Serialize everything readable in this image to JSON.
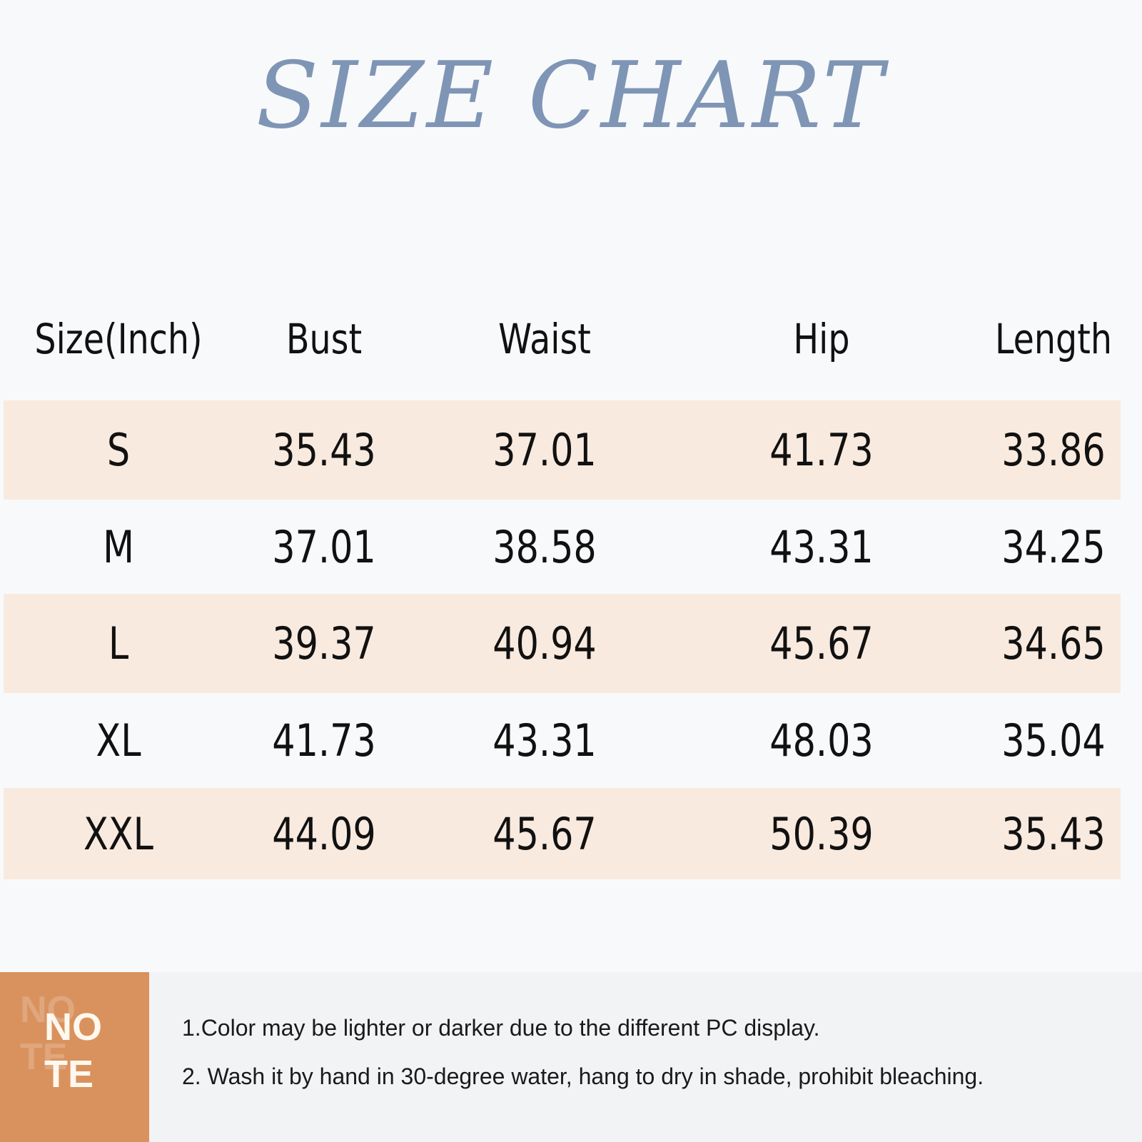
{
  "title": "SIZE CHART",
  "table": {
    "headers": [
      "Size(Inch)",
      "Bust",
      "Waist",
      "Hip",
      "Length"
    ],
    "rows": [
      [
        "S",
        "35.43",
        "37.01",
        "41.73",
        "33.86"
      ],
      [
        "M",
        "37.01",
        "38.58",
        "43.31",
        "34.25"
      ],
      [
        "L",
        "39.37",
        "40.94",
        "45.67",
        "34.65"
      ],
      [
        "XL",
        "41.73",
        "43.31",
        "48.03",
        "35.04"
      ],
      [
        "XXL",
        "44.09",
        "45.67",
        "50.39",
        "35.43"
      ]
    ]
  },
  "note": {
    "badge_line1": "NO",
    "badge_line2": "TE",
    "lines": [
      "1.Color may be lighter or darker due to the different PC display.",
      "2. Wash it by hand in 30-degree water, hang to dry in shade, prohibit bleaching."
    ]
  },
  "colors": {
    "title": "#7f95b5",
    "row_highlight": "#f9eadf",
    "note_badge": "#d9925e"
  }
}
